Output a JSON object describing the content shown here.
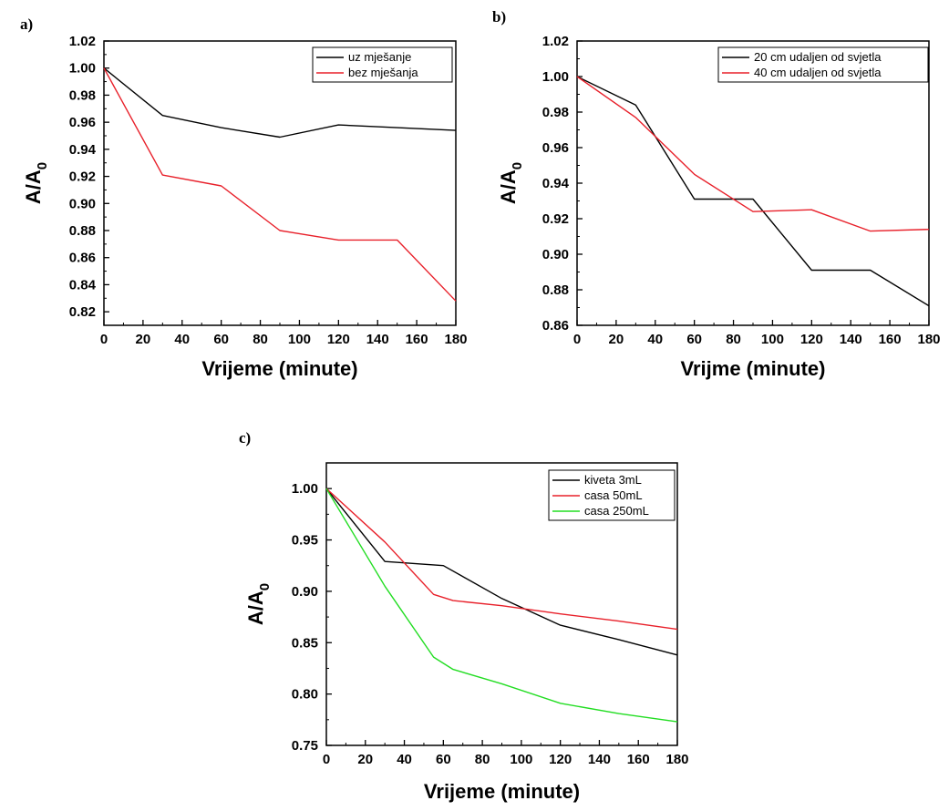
{
  "chart_data": [
    {
      "type": "line",
      "panel_label": "a)",
      "xlabel": "Vrijeme (minute)",
      "ylabel": "A/A",
      "ylabel_sub": "0",
      "xlim": [
        0,
        180
      ],
      "ylim": [
        0.81,
        1.02
      ],
      "xticks": [
        "0",
        "20",
        "40",
        "60",
        "80",
        "100",
        "120",
        "140",
        "160",
        "180"
      ],
      "yticks": [
        "0.82",
        "0.84",
        "0.86",
        "0.88",
        "0.90",
        "0.92",
        "0.94",
        "0.96",
        "0.98",
        "1.00",
        "1.02"
      ],
      "legend_position": "top-right",
      "series": [
        {
          "name": "uz mješanje",
          "color": "#000000",
          "x": [
            0,
            30,
            60,
            90,
            120,
            150,
            180
          ],
          "y": [
            1.0,
            0.965,
            0.956,
            0.949,
            0.958,
            0.956,
            0.954
          ]
        },
        {
          "name": "bez mješanja",
          "color": "#e8202a",
          "x": [
            0,
            30,
            60,
            90,
            120,
            150,
            180
          ],
          "y": [
            1.0,
            0.921,
            0.913,
            0.88,
            0.873,
            0.873,
            0.828
          ]
        }
      ]
    },
    {
      "type": "line",
      "panel_label": "b)",
      "xlabel": "Vrijme (minute)",
      "ylabel": "A/A",
      "ylabel_sub": "0",
      "xlim": [
        0,
        180
      ],
      "ylim": [
        0.86,
        1.02
      ],
      "xticks": [
        "0",
        "20",
        "40",
        "60",
        "80",
        "100",
        "120",
        "140",
        "160",
        "180"
      ],
      "yticks": [
        "0.86",
        "0.88",
        "0.90",
        "0.92",
        "0.94",
        "0.96",
        "0.98",
        "1.00",
        "1.02"
      ],
      "legend_position": "top-right",
      "series": [
        {
          "name": "20 cm udaljen od svjetla",
          "color": "#000000",
          "x": [
            0,
            30,
            60,
            90,
            120,
            150,
            180
          ],
          "y": [
            1.0,
            0.984,
            0.931,
            0.931,
            0.891,
            0.891,
            0.871
          ]
        },
        {
          "name": "40 cm udaljen od svjetla",
          "color": "#e8202a",
          "x": [
            0,
            30,
            60,
            90,
            120,
            150,
            180
          ],
          "y": [
            1.0,
            0.977,
            0.945,
            0.924,
            0.925,
            0.913,
            0.914
          ]
        }
      ]
    },
    {
      "type": "line",
      "panel_label": "c)",
      "xlabel": "Vrijeme (minute)",
      "ylabel": "A/A",
      "ylabel_sub": "0",
      "xlim": [
        0,
        180
      ],
      "ylim": [
        0.75,
        1.025
      ],
      "xticks": [
        "0",
        "20",
        "40",
        "60",
        "80",
        "100",
        "120",
        "140",
        "160",
        "180"
      ],
      "yticks": [
        "0.75",
        "0.80",
        "0.85",
        "0.90",
        "0.95",
        "1.00"
      ],
      "yticks_values": [
        0.75,
        0.8,
        0.85,
        0.9,
        0.95,
        1.0
      ],
      "legend_position": "top-right",
      "series": [
        {
          "name": "kiveta 3mL",
          "color": "#000000",
          "x": [
            0,
            30,
            60,
            90,
            120,
            150,
            180
          ],
          "y": [
            1.0,
            0.929,
            0.925,
            0.893,
            0.867,
            0.853,
            0.838
          ]
        },
        {
          "name": "casa 50mL",
          "color": "#e8202a",
          "x": [
            0,
            30,
            55,
            65,
            90,
            120,
            150,
            180
          ],
          "y": [
            1.0,
            0.948,
            0.897,
            0.891,
            0.886,
            0.878,
            0.871,
            0.863
          ]
        },
        {
          "name": "casa 250mL",
          "color": "#22dd22",
          "x": [
            0,
            30,
            55,
            65,
            90,
            120,
            150,
            180
          ],
          "y": [
            1.0,
            0.905,
            0.836,
            0.824,
            0.81,
            0.791,
            0.781,
            0.773
          ]
        }
      ]
    }
  ]
}
